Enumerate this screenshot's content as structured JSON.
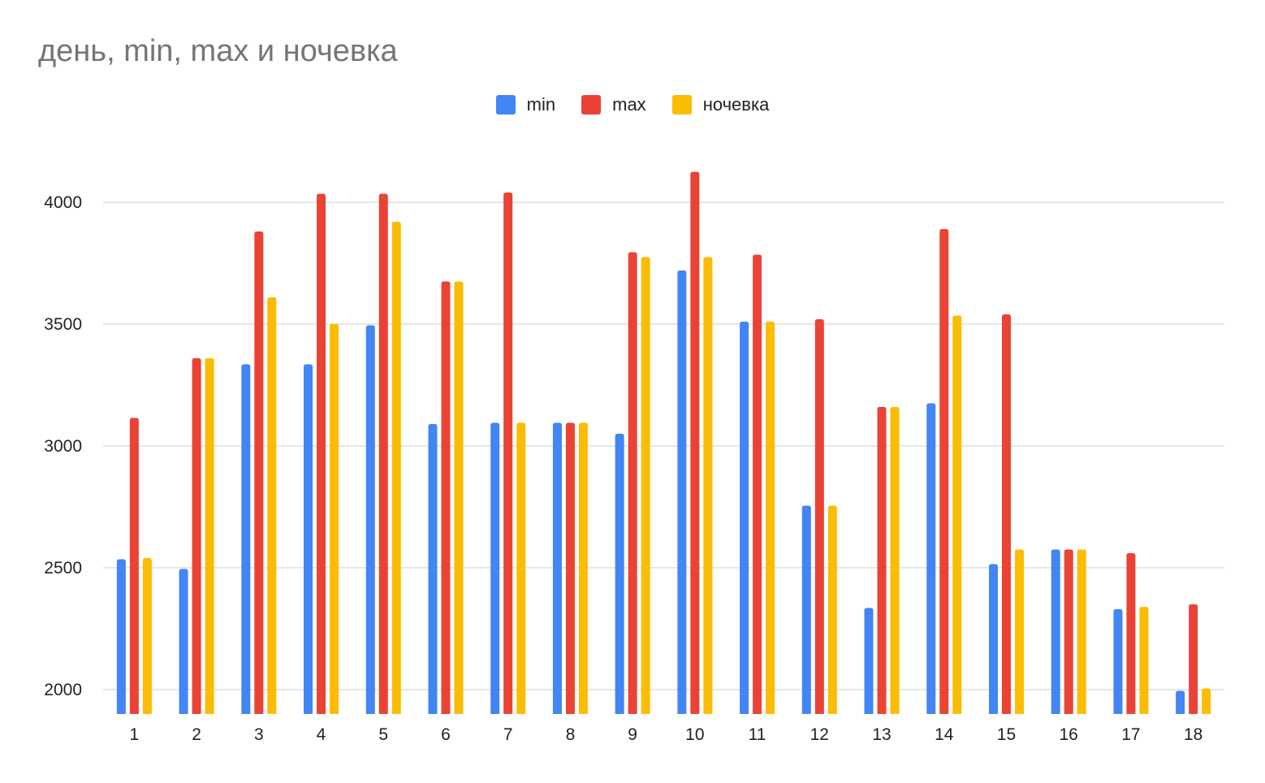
{
  "chart_data": {
    "type": "bar",
    "title": "день, min, max и ночевка",
    "xlabel": "",
    "ylabel": "",
    "categories": [
      "1",
      "2",
      "3",
      "4",
      "5",
      "6",
      "7",
      "8",
      "9",
      "10",
      "11",
      "12",
      "13",
      "14",
      "15",
      "16",
      "17",
      "18"
    ],
    "series": [
      {
        "name": "min",
        "color": "#4285f4",
        "values": [
          2535,
          2495,
          3335,
          3335,
          3495,
          3090,
          3095,
          3095,
          3050,
          3720,
          3510,
          2755,
          2335,
          3175,
          2515,
          2575,
          2330,
          1995
        ]
      },
      {
        "name": "max",
        "color": "#ea4335",
        "values": [
          3115,
          3360,
          3880,
          4035,
          4035,
          3675,
          4040,
          3095,
          3795,
          4125,
          3785,
          3520,
          3160,
          3890,
          3540,
          2575,
          2560,
          2350
        ]
      },
      {
        "name": "ночевка",
        "color": "#fbbc04",
        "values": [
          2540,
          3360,
          3610,
          3500,
          3920,
          3675,
          3095,
          3095,
          3775,
          3775,
          3510,
          2755,
          3160,
          3535,
          2575,
          2575,
          2340,
          2005
        ]
      }
    ],
    "ylim": [
      1900,
      4250
    ],
    "yticks": [
      2000,
      2500,
      3000,
      3500,
      4000
    ],
    "grid": true,
    "legend_position": "top-center"
  }
}
